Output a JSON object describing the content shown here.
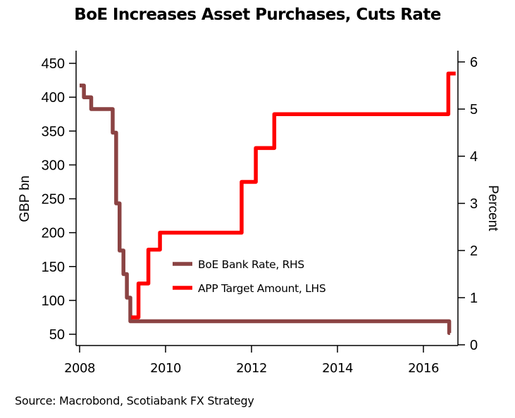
{
  "chart_data": {
    "type": "line",
    "title": "BoE Increases Asset Purchases, Cuts Rate",
    "source": "Source: Macrobond, Scotiabank FX Strategy",
    "xlabel": "",
    "ylabel_left": "GBP bn",
    "ylabel_right": "Percent",
    "xlim": [
      2008.0,
      2016.85
    ],
    "ylim_left": [
      40,
      470
    ],
    "ylim_right": [
      0,
      6.2
    ],
    "x_ticks": [
      2008,
      2010,
      2012,
      2014,
      2016
    ],
    "x_tick_labels": [
      "2008",
      "2010",
      "2012",
      "2014",
      "2016"
    ],
    "y_left_ticks": [
      50,
      100,
      150,
      200,
      250,
      300,
      350,
      400,
      450
    ],
    "y_left_tick_labels": [
      "50",
      "100",
      "150",
      "200",
      "250",
      "300",
      "350",
      "400",
      "450"
    ],
    "y_right_ticks": [
      0,
      1,
      2,
      3,
      4,
      5,
      6
    ],
    "y_right_tick_labels": [
      "0",
      "1",
      "2",
      "3",
      "4",
      "5",
      "6"
    ],
    "grid": false,
    "legend_position": "center",
    "series": [
      {
        "name": "BoE Bank Rate, RHS",
        "axis": "right",
        "color": "#8B4343",
        "step": true,
        "points": [
          [
            2008.0,
            5.5
          ],
          [
            2008.1,
            5.25
          ],
          [
            2008.27,
            5.0
          ],
          [
            2008.77,
            4.5
          ],
          [
            2008.85,
            3.0
          ],
          [
            2008.93,
            2.0
          ],
          [
            2009.02,
            1.5
          ],
          [
            2009.1,
            1.0
          ],
          [
            2009.18,
            0.5
          ],
          [
            2016.6,
            0.25
          ],
          [
            2016.62,
            0.25
          ]
        ]
      },
      {
        "name": "APP Target Amount, LHS",
        "axis": "left",
        "color": "#FF0000",
        "step": true,
        "points": [
          [
            2009.2,
            75
          ],
          [
            2009.37,
            125
          ],
          [
            2009.6,
            175
          ],
          [
            2009.87,
            200
          ],
          [
            2011.77,
            275
          ],
          [
            2012.1,
            325
          ],
          [
            2012.53,
            375
          ],
          [
            2016.58,
            435
          ],
          [
            2016.75,
            435
          ]
        ]
      }
    ]
  }
}
